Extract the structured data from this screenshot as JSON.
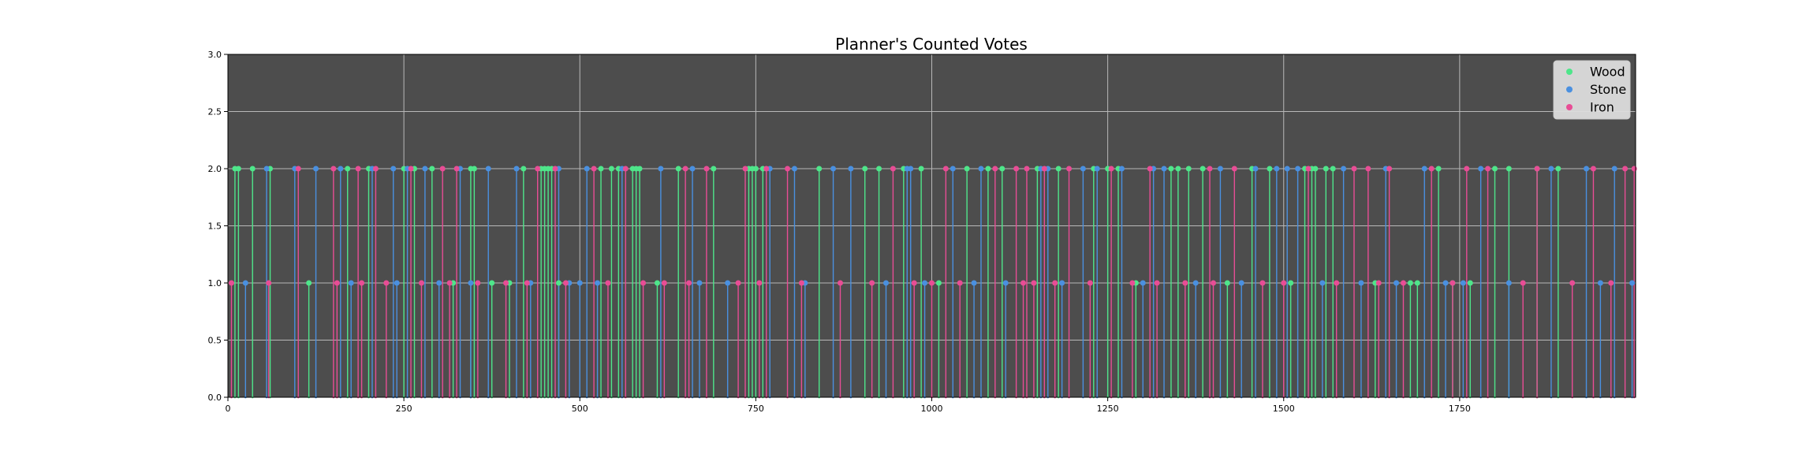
{
  "chart_data": {
    "type": "scatter",
    "style": "stem",
    "title": "Planner's Counted Votes",
    "xlabel": "",
    "ylabel": "",
    "xlim": [
      0,
      2000
    ],
    "ylim": [
      0,
      3.0
    ],
    "x_ticks": [
      0,
      250,
      500,
      750,
      1000,
      1250,
      1500,
      1750
    ],
    "x_tick_labels": [
      "0",
      "250",
      "500",
      "750",
      "1000",
      "1250",
      "1500",
      "1750"
    ],
    "y_ticks": [
      0.0,
      0.5,
      1.0,
      1.5,
      2.0,
      2.5,
      3.0
    ],
    "y_tick_labels": [
      "0.0",
      "0.5",
      "1.0",
      "1.5",
      "2.0",
      "2.5",
      "3.0"
    ],
    "grid": true,
    "legend_position": "top-right",
    "background_color": "#4d4d4d",
    "series": [
      {
        "name": "Wood",
        "color": "#4ee68a",
        "x": [
          10,
          15,
          35,
          60,
          115,
          170,
          200,
          250,
          265,
          290,
          320,
          345,
          350,
          375,
          400,
          420,
          445,
          450,
          455,
          460,
          470,
          530,
          545,
          555,
          575,
          580,
          585,
          610,
          640,
          690,
          740,
          745,
          750,
          760,
          840,
          905,
          925,
          960,
          985,
          1010,
          1050,
          1080,
          1100,
          1150,
          1180,
          1230,
          1250,
          1265,
          1290,
          1340,
          1350,
          1365,
          1385,
          1420,
          1455,
          1480,
          1510,
          1530,
          1540,
          1545,
          1560,
          1570,
          1630,
          1680,
          1690,
          1720,
          1740,
          1765,
          1800,
          1820,
          1860,
          1890
        ],
        "values": [
          2,
          2,
          2,
          2,
          1,
          2,
          2,
          2,
          2,
          2,
          1,
          2,
          2,
          1,
          1,
          2,
          2,
          2,
          2,
          2,
          1,
          2,
          2,
          2,
          2,
          2,
          2,
          1,
          2,
          2,
          2,
          2,
          2,
          2,
          2,
          2,
          2,
          2,
          2,
          1,
          2,
          2,
          2,
          2,
          2,
          2,
          2,
          2,
          1,
          2,
          2,
          2,
          2,
          1,
          2,
          2,
          1,
          2,
          2,
          2,
          2,
          2,
          1,
          1,
          1,
          2,
          1,
          1,
          2,
          2,
          2,
          2
        ]
      },
      {
        "name": "Stone",
        "color": "#4a90e0",
        "x": [
          25,
          55,
          95,
          125,
          160,
          175,
          205,
          235,
          240,
          255,
          280,
          300,
          330,
          345,
          370,
          410,
          430,
          470,
          485,
          500,
          510,
          525,
          560,
          615,
          660,
          670,
          710,
          770,
          805,
          820,
          860,
          885,
          935,
          965,
          970,
          990,
          1030,
          1060,
          1070,
          1105,
          1155,
          1165,
          1185,
          1215,
          1235,
          1270,
          1300,
          1315,
          1330,
          1375,
          1410,
          1440,
          1460,
          1490,
          1505,
          1520,
          1555,
          1585,
          1610,
          1645,
          1660,
          1700,
          1730,
          1755,
          1780,
          1820,
          1880,
          1930,
          1950,
          1970,
          1995
        ],
        "values": [
          1,
          2,
          2,
          2,
          2,
          1,
          2,
          2,
          1,
          2,
          2,
          1,
          2,
          1,
          2,
          2,
          1,
          2,
          1,
          1,
          2,
          1,
          2,
          2,
          2,
          1,
          1,
          2,
          2,
          1,
          2,
          2,
          1,
          2,
          2,
          1,
          2,
          1,
          2,
          1,
          2,
          2,
          1,
          2,
          2,
          2,
          1,
          2,
          2,
          1,
          2,
          1,
          2,
          2,
          2,
          2,
          1,
          2,
          1,
          2,
          1,
          2,
          1,
          1,
          2,
          1,
          2,
          2,
          1,
          2,
          1
        ]
      },
      {
        "name": "Iron",
        "color": "#e84d95",
        "x": [
          5,
          58,
          100,
          150,
          155,
          185,
          190,
          210,
          225,
          260,
          275,
          305,
          315,
          325,
          355,
          395,
          425,
          440,
          465,
          480,
          520,
          540,
          565,
          590,
          620,
          650,
          655,
          680,
          725,
          735,
          755,
          765,
          795,
          815,
          870,
          915,
          945,
          975,
          1000,
          1020,
          1040,
          1090,
          1120,
          1130,
          1135,
          1145,
          1160,
          1175,
          1195,
          1225,
          1255,
          1285,
          1310,
          1320,
          1360,
          1395,
          1400,
          1430,
          1470,
          1500,
          1535,
          1575,
          1600,
          1620,
          1635,
          1650,
          1670,
          1710,
          1740,
          1760,
          1790,
          1840,
          1860,
          1910,
          1940,
          1965,
          1985,
          1998
        ],
        "values": [
          1,
          1,
          2,
          2,
          1,
          2,
          1,
          2,
          1,
          2,
          1,
          2,
          1,
          2,
          1,
          1,
          1,
          2,
          2,
          1,
          2,
          1,
          2,
          1,
          1,
          2,
          1,
          2,
          1,
          2,
          1,
          2,
          2,
          1,
          1,
          1,
          2,
          1,
          1,
          2,
          1,
          2,
          2,
          1,
          2,
          1,
          2,
          1,
          2,
          1,
          2,
          1,
          2,
          1,
          1,
          2,
          1,
          2,
          1,
          1,
          2,
          1,
          2,
          2,
          1,
          2,
          1,
          2,
          1,
          2,
          2,
          1,
          2,
          1,
          2,
          1,
          2,
          2
        ]
      }
    ]
  }
}
